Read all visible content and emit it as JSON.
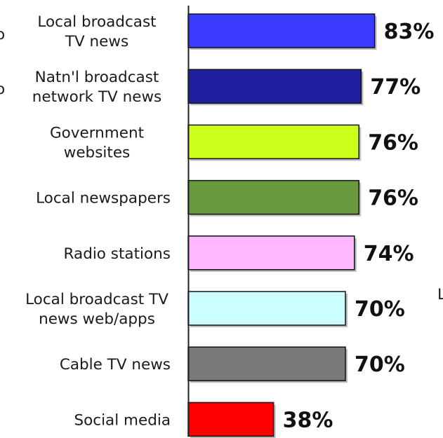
{
  "chart_data": {
    "type": "bar",
    "orientation": "horizontal",
    "categories": [
      [
        "Local broadcast",
        "TV news"
      ],
      [
        "Natn'l broadcast",
        "network TV news"
      ],
      [
        "Government",
        "websites"
      ],
      [
        "Local newspapers"
      ],
      [
        "Radio stations"
      ],
      [
        "Local broadcast TV",
        "news web/apps"
      ],
      [
        "Cable TV news"
      ],
      [
        "Social media"
      ]
    ],
    "values": [
      83,
      77,
      76,
      76,
      74,
      70,
      70,
      38
    ],
    "value_labels": [
      "83%",
      "77%",
      "76%",
      "76%",
      "74%",
      "70%",
      "70%",
      "38%"
    ],
    "colors": [
      "#3b3bff",
      "#1f1f9f",
      "#ccff1a",
      "#6a9a3f",
      "#ffb8ff",
      "#ccffff",
      "#7a7a7a",
      "#ff0000"
    ],
    "xlim": [
      0,
      100
    ],
    "grid": false,
    "legend": "none",
    "edge_glyphs": [
      "o",
      "o",
      "L"
    ]
  }
}
